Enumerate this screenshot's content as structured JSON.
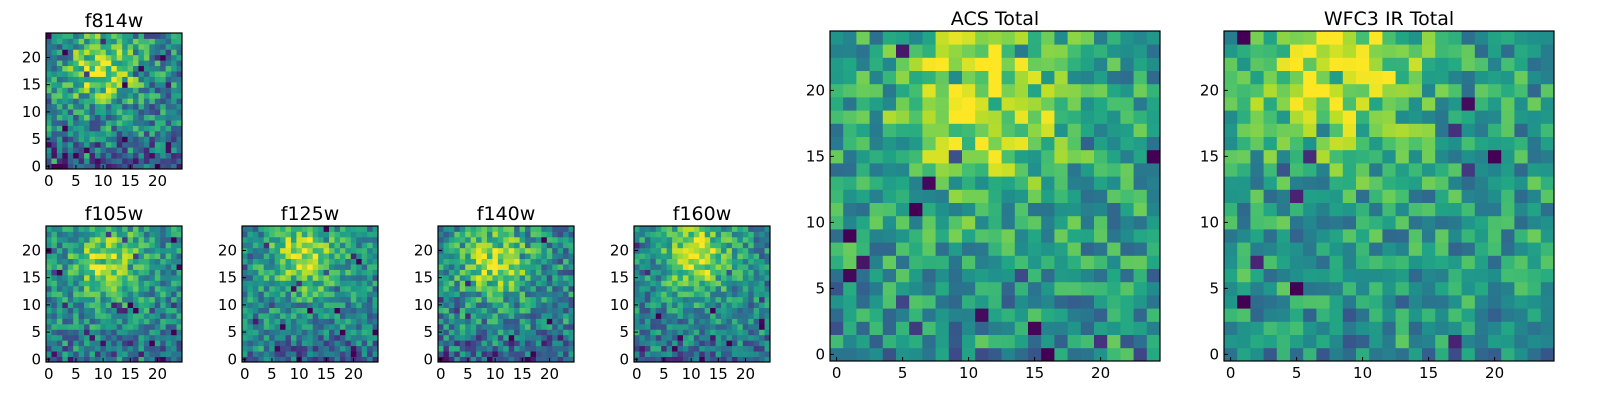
{
  "colormap": "viridis",
  "chart_data": [
    {
      "type": "heatmap",
      "title": "f814w",
      "grid_size": [
        25,
        25
      ],
      "xticks": [
        "0",
        "5",
        "10",
        "15",
        "20"
      ],
      "yticks": [
        "0",
        "5",
        "10",
        "15",
        "20"
      ],
      "seed": 11,
      "peak": [
        10,
        18
      ],
      "peak_strength": 0.45,
      "noise": 0.55,
      "base": 0.45,
      "bottom_dark": 0.35
    },
    {
      "type": "heatmap",
      "title": "f105w",
      "grid_size": [
        25,
        25
      ],
      "xticks": [
        "0",
        "5",
        "10",
        "15",
        "20"
      ],
      "yticks": [
        "0",
        "5",
        "10",
        "15",
        "20"
      ],
      "seed": 23,
      "peak": [
        11,
        18
      ],
      "peak_strength": 0.4,
      "noise": 0.45,
      "base": 0.48,
      "bottom_dark": 0.3
    },
    {
      "type": "heatmap",
      "title": "f125w",
      "grid_size": [
        25,
        25
      ],
      "xticks": [
        "0",
        "5",
        "10",
        "15",
        "20"
      ],
      "yticks": [
        "0",
        "5",
        "10",
        "15",
        "20"
      ],
      "seed": 37,
      "peak": [
        11,
        19
      ],
      "peak_strength": 0.42,
      "noise": 0.45,
      "base": 0.47,
      "bottom_dark": 0.3
    },
    {
      "type": "heatmap",
      "title": "f140w",
      "grid_size": [
        25,
        25
      ],
      "xticks": [
        "0",
        "5",
        "10",
        "15",
        "20"
      ],
      "yticks": [
        "0",
        "5",
        "10",
        "15",
        "20"
      ],
      "seed": 41,
      "peak": [
        10,
        18
      ],
      "peak_strength": 0.42,
      "noise": 0.5,
      "base": 0.46,
      "bottom_dark": 0.35
    },
    {
      "type": "heatmap",
      "title": "f160w",
      "grid_size": [
        25,
        25
      ],
      "xticks": [
        "0",
        "5",
        "10",
        "15",
        "20"
      ],
      "yticks": [
        "0",
        "5",
        "10",
        "15",
        "20"
      ],
      "seed": 53,
      "peak": [
        11,
        19
      ],
      "peak_strength": 0.45,
      "noise": 0.45,
      "base": 0.46,
      "bottom_dark": 0.32
    },
    {
      "type": "heatmap",
      "title": "ACS Total",
      "grid_size": [
        25,
        25
      ],
      "xticks": [
        "0",
        "5",
        "10",
        "15",
        "20"
      ],
      "yticks": [
        "0",
        "5",
        "10",
        "15",
        "20"
      ],
      "seed": 67,
      "peak": [
        11,
        19
      ],
      "peak_strength": 0.4,
      "noise": 0.45,
      "base": 0.55,
      "bottom_dark": 0.15
    },
    {
      "type": "heatmap",
      "title": "WFC3 IR Total",
      "grid_size": [
        25,
        25
      ],
      "xticks": [
        "0",
        "5",
        "10",
        "15",
        "20"
      ],
      "yticks": [
        "0",
        "5",
        "10",
        "15",
        "20"
      ],
      "seed": 79,
      "peak": [
        8,
        22
      ],
      "peak_strength": 0.4,
      "noise": 0.45,
      "base": 0.55,
      "bottom_dark": 0.15
    }
  ]
}
